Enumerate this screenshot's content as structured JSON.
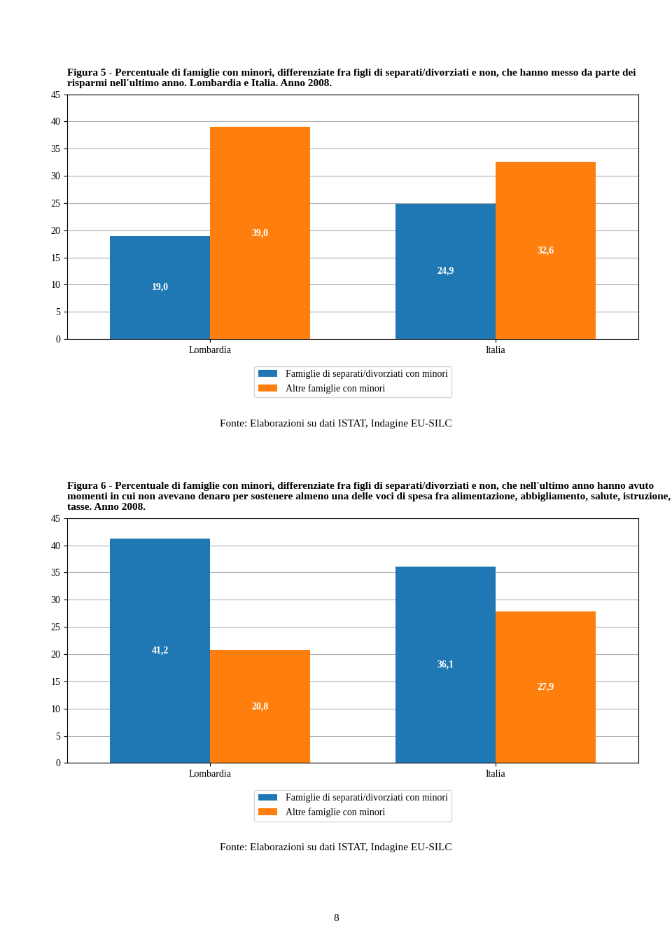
{
  "chart_data": [
    {
      "type": "bar",
      "title": "Figura 5 - Percentuale di famiglie con minori, differenziate fra figli di separati/divorziati e non, che hanno messo da parte dei risparmi nell'ultimo anno. Lombardia e Italia. Anno 2008.",
      "categories": [
        "Lombardia",
        "Italia"
      ],
      "series": [
        {
          "name": "Famiglie di separati/divorziati con minori",
          "values": [
            19.0,
            24.9
          ],
          "value_labels": [
            "19,0",
            "24,9"
          ]
        },
        {
          "name": "Altre famiglie con minori",
          "values": [
            39.0,
            32.6
          ],
          "value_labels": [
            "39,0",
            "32,6"
          ]
        }
      ],
      "ylim": [
        0,
        45
      ],
      "yticks": [
        0,
        5,
        10,
        15,
        20,
        25,
        30,
        35,
        40,
        45
      ],
      "grid": true,
      "legend": "lower center",
      "data_labels": true,
      "annotations": [
        "Fonte: Elaborazioni su dati ISTAT, Indagine EU-SILC"
      ]
    },
    {
      "type": "bar",
      "title": "Figura 6 - Percentuale di famiglie con minori, differenziate fra figli di separati/divorziati e non, che nell'ultimo anno hanno avuto momenti in cui non avevano denaro per sostenere almeno una delle voci di spesa fra alimentazione, abbigliamento, salute, istruzione, tasse. Anno 2008.",
      "categories": [
        "Lombardia",
        "Italia"
      ],
      "series": [
        {
          "name": "Famiglie di separati/divorziati con minori",
          "values": [
            41.2,
            36.1
          ],
          "value_labels": [
            "41,2",
            "36,1"
          ]
        },
        {
          "name": "Altre famiglie con minori",
          "values": [
            20.8,
            27.9
          ],
          "value_labels": [
            "20,8",
            "27,9"
          ]
        }
      ],
      "ylim": [
        0,
        45
      ],
      "yticks": [
        0,
        5,
        10,
        15,
        20,
        25,
        30,
        35,
        40,
        45
      ],
      "grid": true,
      "legend": "lower center",
      "data_labels": true,
      "annotations": [
        "Fonte: Elaborazioni su dati ISTAT, Indagine EU-SILC",
        "8"
      ]
    }
  ]
}
